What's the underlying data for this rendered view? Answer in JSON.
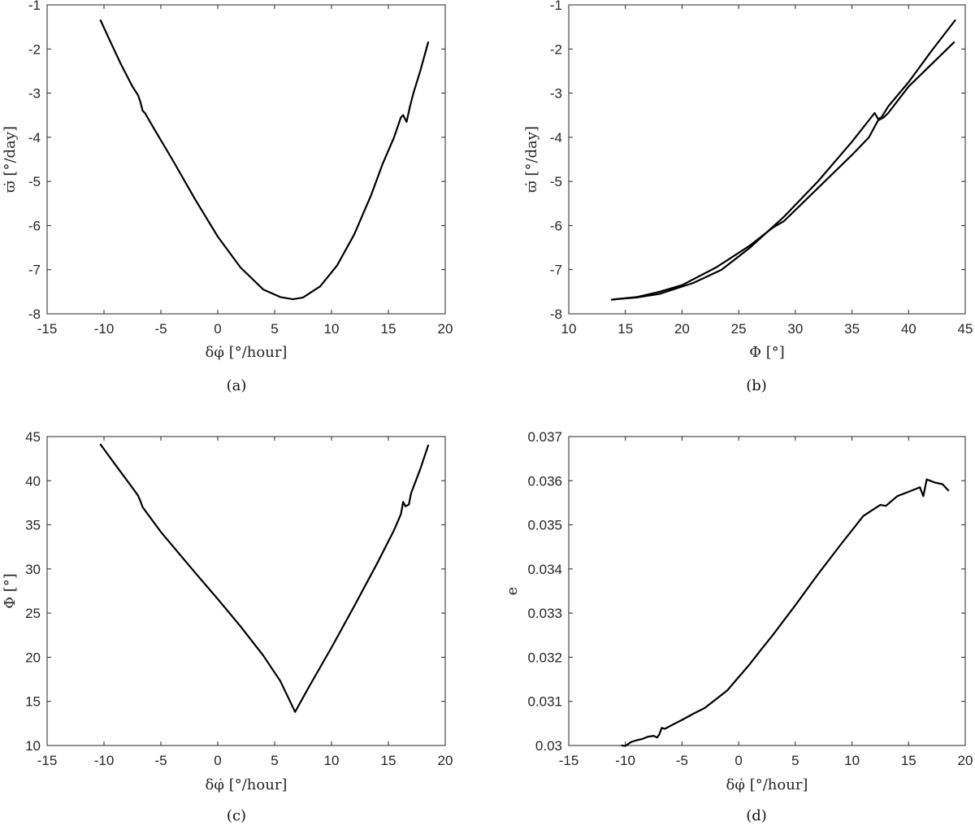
{
  "chart_data": [
    {
      "id": "a",
      "type": "line",
      "caption": "(a)",
      "xlabel": "δφ̇ [°/hour]",
      "ylabel": "ϖ̇ [°/day]",
      "xlim": [
        -15,
        20
      ],
      "ylim": [
        -8,
        -1
      ],
      "xticks": [
        "-15",
        "-10",
        "-5",
        "0",
        "5",
        "10",
        "15",
        "20"
      ],
      "yticks": [
        "-8",
        "-7",
        "-6",
        "-5",
        "-4",
        "-3",
        "-2",
        "-1"
      ],
      "grid": false,
      "series": [
        {
          "color": "#000000",
          "x": [
            -10.3,
            -9.5,
            -8.5,
            -7.5,
            -7.0,
            -6.8,
            -6.6,
            -6.4,
            -5.5,
            -4.0,
            -2.0,
            0.0,
            2.0,
            4.0,
            5.5,
            6.6,
            7.5,
            9.0,
            10.5,
            12.0,
            13.5,
            14.5,
            15.5,
            16.1,
            16.3,
            16.6,
            16.9,
            17.2,
            17.8,
            18.5
          ],
          "y": [
            -1.35,
            -1.8,
            -2.35,
            -2.85,
            -3.05,
            -3.2,
            -3.4,
            -3.45,
            -3.85,
            -4.5,
            -5.4,
            -6.25,
            -6.95,
            -7.45,
            -7.62,
            -7.67,
            -7.63,
            -7.38,
            -6.9,
            -6.2,
            -5.3,
            -4.6,
            -4.0,
            -3.55,
            -3.5,
            -3.65,
            -3.3,
            -3.0,
            -2.5,
            -1.85
          ]
        }
      ]
    },
    {
      "id": "b",
      "type": "line",
      "caption": "(b)",
      "xlabel": "Φ [°]",
      "ylabel": "ϖ̇ [°/day]",
      "xlim": [
        10,
        45
      ],
      "ylim": [
        -8,
        -1
      ],
      "xticks": [
        "10",
        "15",
        "20",
        "25",
        "30",
        "35",
        "40",
        "45"
      ],
      "yticks": [
        "-8",
        "-7",
        "-6",
        "-5",
        "-4",
        "-3",
        "-2",
        "-1"
      ],
      "grid": false,
      "series": [
        {
          "color": "#000000",
          "x": [
            44.1,
            42.0,
            40.0,
            38.2,
            37.6,
            37.3,
            37.0,
            35.0,
            32.0,
            29.0,
            26.0,
            23.5,
            21.0,
            18.0,
            16.0,
            14.0
          ],
          "y": [
            -1.35,
            -2.05,
            -2.75,
            -3.3,
            -3.55,
            -3.58,
            -3.45,
            -4.1,
            -5.0,
            -5.8,
            -6.5,
            -7.0,
            -7.3,
            -7.55,
            -7.63,
            -7.67
          ]
        },
        {
          "color": "#000000",
          "x": [
            13.8,
            16.0,
            18.0,
            20.0,
            23.0,
            26.0,
            28.0,
            29.0,
            32.0,
            35.0,
            36.5,
            37.3,
            37.8,
            38.2,
            40.0,
            42.0,
            44.0
          ],
          "y": [
            -7.68,
            -7.62,
            -7.5,
            -7.35,
            -6.95,
            -6.45,
            -6.05,
            -5.9,
            -5.15,
            -4.4,
            -4.0,
            -3.62,
            -3.55,
            -3.45,
            -2.85,
            -2.35,
            -1.85
          ]
        }
      ]
    },
    {
      "id": "c",
      "type": "line",
      "caption": "(c)",
      "xlabel": "δφ̇ [°/hour]",
      "ylabel": "Φ [°]",
      "xlim": [
        -15,
        20
      ],
      "ylim": [
        10,
        45
      ],
      "xticks": [
        "-15",
        "-10",
        "-5",
        "0",
        "5",
        "10",
        "15",
        "20"
      ],
      "yticks": [
        "10",
        "15",
        "20",
        "25",
        "30",
        "35",
        "40",
        "45"
      ],
      "grid": false,
      "series": [
        {
          "color": "#000000",
          "x": [
            -10.3,
            -9.0,
            -7.5,
            -7.0,
            -6.8,
            -6.6,
            -5.0,
            -2.0,
            0.0,
            2.0,
            4.0,
            5.5,
            6.8,
            8.0,
            10.0,
            12.0,
            14.0,
            15.5,
            16.1,
            16.3,
            16.5,
            16.8,
            17.0,
            17.8,
            18.5
          ],
          "y": [
            44.1,
            41.8,
            39.2,
            38.3,
            37.7,
            37.0,
            34.2,
            29.6,
            26.6,
            23.5,
            20.2,
            17.3,
            13.8,
            16.6,
            21.1,
            25.8,
            30.6,
            34.4,
            36.2,
            37.6,
            37.1,
            37.3,
            38.6,
            41.3,
            44.0
          ]
        }
      ]
    },
    {
      "id": "d",
      "type": "line",
      "caption": "(d)",
      "xlabel": "δφ̇ [°/hour]",
      "ylabel": "e",
      "xlim": [
        -15,
        20
      ],
      "ylim": [
        0.03,
        0.037
      ],
      "xticks": [
        "-15",
        "-10",
        "-5",
        "0",
        "5",
        "10",
        "15",
        "20"
      ],
      "yticks": [
        "0.03",
        "0.031",
        "0.032",
        "0.033",
        "0.034",
        "0.035",
        "0.036",
        "0.037"
      ],
      "grid": false,
      "series": [
        {
          "color": "#000000",
          "x": [
            -10.3,
            -10.0,
            -9.5,
            -9.0,
            -8.5,
            -8.0,
            -7.5,
            -7.2,
            -7.0,
            -6.8,
            -6.5,
            -6.0,
            -5.0,
            -4.0,
            -3.0,
            -2.0,
            -1.0,
            0.0,
            1.0,
            2.0,
            3.0,
            5.0,
            7.0,
            9.0,
            11.0,
            12.5,
            13.0,
            14.0,
            15.0,
            16.0,
            16.3,
            16.6,
            16.9,
            17.3,
            18.0,
            18.5
          ],
          "y": [
            0.03,
            0.02999,
            0.03008,
            0.03012,
            0.03015,
            0.0302,
            0.03022,
            0.03018,
            0.03025,
            0.0304,
            0.03038,
            0.03045,
            0.03058,
            0.03072,
            0.03085,
            0.03105,
            0.03125,
            0.03155,
            0.03185,
            0.03218,
            0.0325,
            0.03318,
            0.03388,
            0.03455,
            0.0352,
            0.03545,
            0.03543,
            0.03565,
            0.03575,
            0.03585,
            0.03565,
            0.03603,
            0.036,
            0.03596,
            0.03592,
            0.03578
          ]
        }
      ]
    }
  ]
}
